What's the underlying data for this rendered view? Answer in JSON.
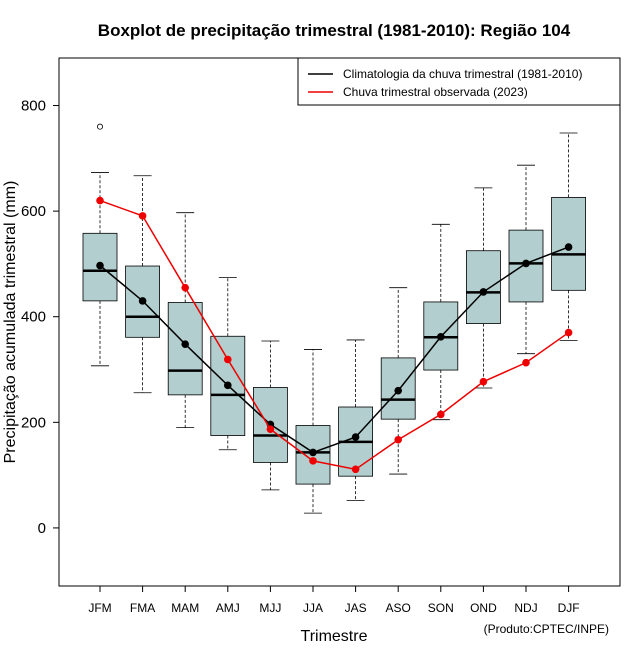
{
  "chart_data": {
    "type": "boxplot",
    "title": "Boxplot de precipitação trimestral (1981-2010): Região 104",
    "xlabel": "Trimestre",
    "ylabel": "Precipitação acumulada trimestral (mm)",
    "ylim": [
      -110,
      890
    ],
    "yticks": [
      0,
      200,
      400,
      600,
      800
    ],
    "categories": [
      "JFM",
      "FMA",
      "MAM",
      "AMJ",
      "MJJ",
      "JJA",
      "JAS",
      "ASO",
      "SON",
      "OND",
      "NDJ",
      "DJF"
    ],
    "boxes": [
      {
        "min": 307,
        "q1": 430,
        "median": 487,
        "q3": 558,
        "max": 673,
        "outliers": [
          760
        ]
      },
      {
        "min": 256,
        "q1": 361,
        "median": 400,
        "q3": 496,
        "max": 667,
        "outliers": []
      },
      {
        "min": 190,
        "q1": 252,
        "median": 298,
        "q3": 427,
        "max": 597,
        "outliers": []
      },
      {
        "min": 148,
        "q1": 175,
        "median": 252,
        "q3": 363,
        "max": 474,
        "outliers": []
      },
      {
        "min": 72,
        "q1": 124,
        "median": 175,
        "q3": 266,
        "max": 354,
        "outliers": []
      },
      {
        "min": 28,
        "q1": 83,
        "median": 143,
        "q3": 194,
        "max": 338,
        "outliers": []
      },
      {
        "min": 52,
        "q1": 98,
        "median": 163,
        "q3": 229,
        "max": 356,
        "outliers": []
      },
      {
        "min": 102,
        "q1": 206,
        "median": 243,
        "q3": 322,
        "max": 455,
        "outliers": []
      },
      {
        "min": 205,
        "q1": 299,
        "median": 361,
        "q3": 428,
        "max": 575,
        "outliers": []
      },
      {
        "min": 265,
        "q1": 387,
        "median": 446,
        "q3": 525,
        "max": 644,
        "outliers": []
      },
      {
        "min": 330,
        "q1": 428,
        "median": 501,
        "q3": 564,
        "max": 687,
        "outliers": []
      },
      {
        "min": 355,
        "q1": 450,
        "median": 518,
        "q3": 626,
        "max": 748,
        "outliers": []
      }
    ],
    "series": [
      {
        "name": "Climatologia da chuva trimestral (1981-2010)",
        "color": "#000000",
        "values": [
          497,
          430,
          348,
          270,
          196,
          143,
          172,
          260,
          362,
          447,
          501,
          532
        ]
      },
      {
        "name": "Chuva trimestral observada (2023)",
        "color": "#ee0000",
        "values": [
          620,
          591,
          455,
          319,
          187,
          127,
          111,
          167,
          215,
          277,
          313,
          370
        ]
      }
    ],
    "box_fill": "#b3cece",
    "legend_position": "top-right"
  },
  "credit": "(Produto:CPTEC/INPE)"
}
